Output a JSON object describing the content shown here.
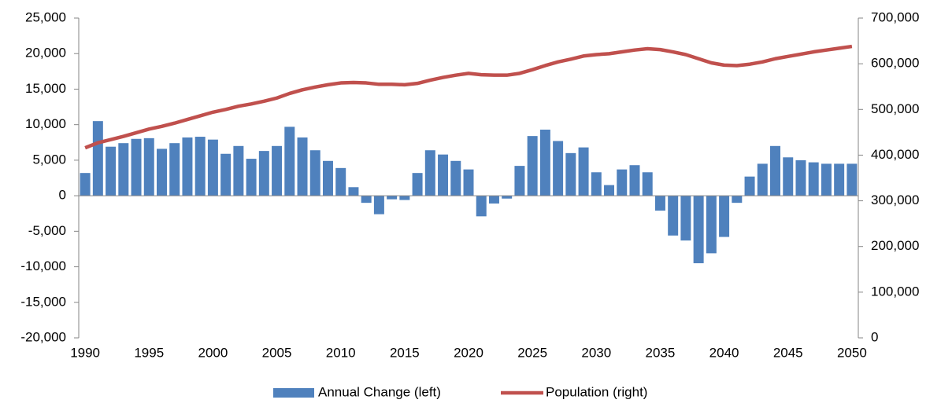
{
  "chart_data": {
    "type": "bar",
    "categories": [
      "1990",
      null,
      null,
      null,
      null,
      "1995",
      null,
      null,
      null,
      null,
      "2000",
      null,
      null,
      null,
      null,
      "2005",
      null,
      null,
      null,
      null,
      "2010",
      null,
      null,
      null,
      null,
      "2015",
      null,
      null,
      null,
      null,
      "2020",
      null,
      null,
      null,
      null,
      "2025",
      null,
      null,
      null,
      null,
      "2030",
      null,
      null,
      null,
      null,
      "2035",
      null,
      null,
      null,
      null,
      "2040",
      null,
      null,
      null,
      null,
      "2045",
      null,
      null,
      null,
      null,
      "2050"
    ],
    "series": [
      {
        "name": "Annual Change (left)",
        "type": "bar",
        "color": "#4f81bd",
        "axis": "y",
        "values": [
          3200,
          10500,
          6900,
          7400,
          8000,
          8100,
          6600,
          7400,
          8200,
          8300,
          7900,
          5900,
          7000,
          5200,
          6300,
          7000,
          9700,
          8200,
          6400,
          4900,
          3900,
          1200,
          -1000,
          -2600,
          -500,
          -600,
          3200,
          6400,
          5800,
          4900,
          3700,
          -2900,
          -1100,
          -400,
          4200,
          8400,
          9300,
          7700,
          6000,
          6800,
          3300,
          1500,
          3700,
          4300,
          3300,
          -2100,
          -5600,
          -6300,
          -9500,
          -8100,
          -5800,
          -1000,
          2700,
          4500,
          7000,
          5400,
          5000,
          4700,
          4500,
          4500,
          4500
        ]
      },
      {
        "name": "Population (right)",
        "type": "line",
        "color": "#c0504d",
        "axis": "y2",
        "values": [
          416000,
          427000,
          434000,
          441000,
          449000,
          457000,
          463000,
          470000,
          478000,
          486000,
          494000,
          500000,
          507000,
          512000,
          518000,
          525000,
          535000,
          543000,
          549000,
          554000,
          558000,
          559000,
          558000,
          555000,
          555000,
          554000,
          557000,
          564000,
          570000,
          575000,
          579000,
          576000,
          575000,
          575000,
          579000,
          587000,
          596000,
          604000,
          610000,
          617000,
          620000,
          622000,
          626000,
          630000,
          633000,
          631000,
          626000,
          620000,
          611000,
          602000,
          597000,
          596000,
          599000,
          604000,
          611000,
          616000,
          621000,
          626000,
          630000,
          634000,
          638000
        ]
      }
    ],
    "ylim": [
      -20000,
      25000
    ],
    "yticks": [
      {
        "value": -20000,
        "label": "-20,000"
      },
      {
        "value": -15000,
        "label": "-15,000"
      },
      {
        "value": -10000,
        "label": "-10,000"
      },
      {
        "value": -5000,
        "label": "-5,000"
      },
      0,
      {
        "value": 5000,
        "label": "5,000"
      },
      {
        "value": 10000,
        "label": "10,000"
      },
      {
        "value": 15000,
        "label": "15,000"
      },
      {
        "value": 20000,
        "label": "20,000"
      },
      {
        "value": 25000,
        "label": "25,000"
      }
    ],
    "y2lim": [
      0,
      700000
    ],
    "y2ticks": [
      0,
      {
        "value": 100000,
        "label": "100,000"
      },
      {
        "value": 200000,
        "label": "200,000"
      },
      {
        "value": 300000,
        "label": "300,000"
      },
      {
        "value": 400000,
        "label": "400,000"
      },
      {
        "value": 500000,
        "label": "500,000"
      },
      {
        "value": 600000,
        "label": "600,000"
      },
      {
        "value": 700000,
        "label": "700,000"
      }
    ],
    "legend": "bottom"
  }
}
